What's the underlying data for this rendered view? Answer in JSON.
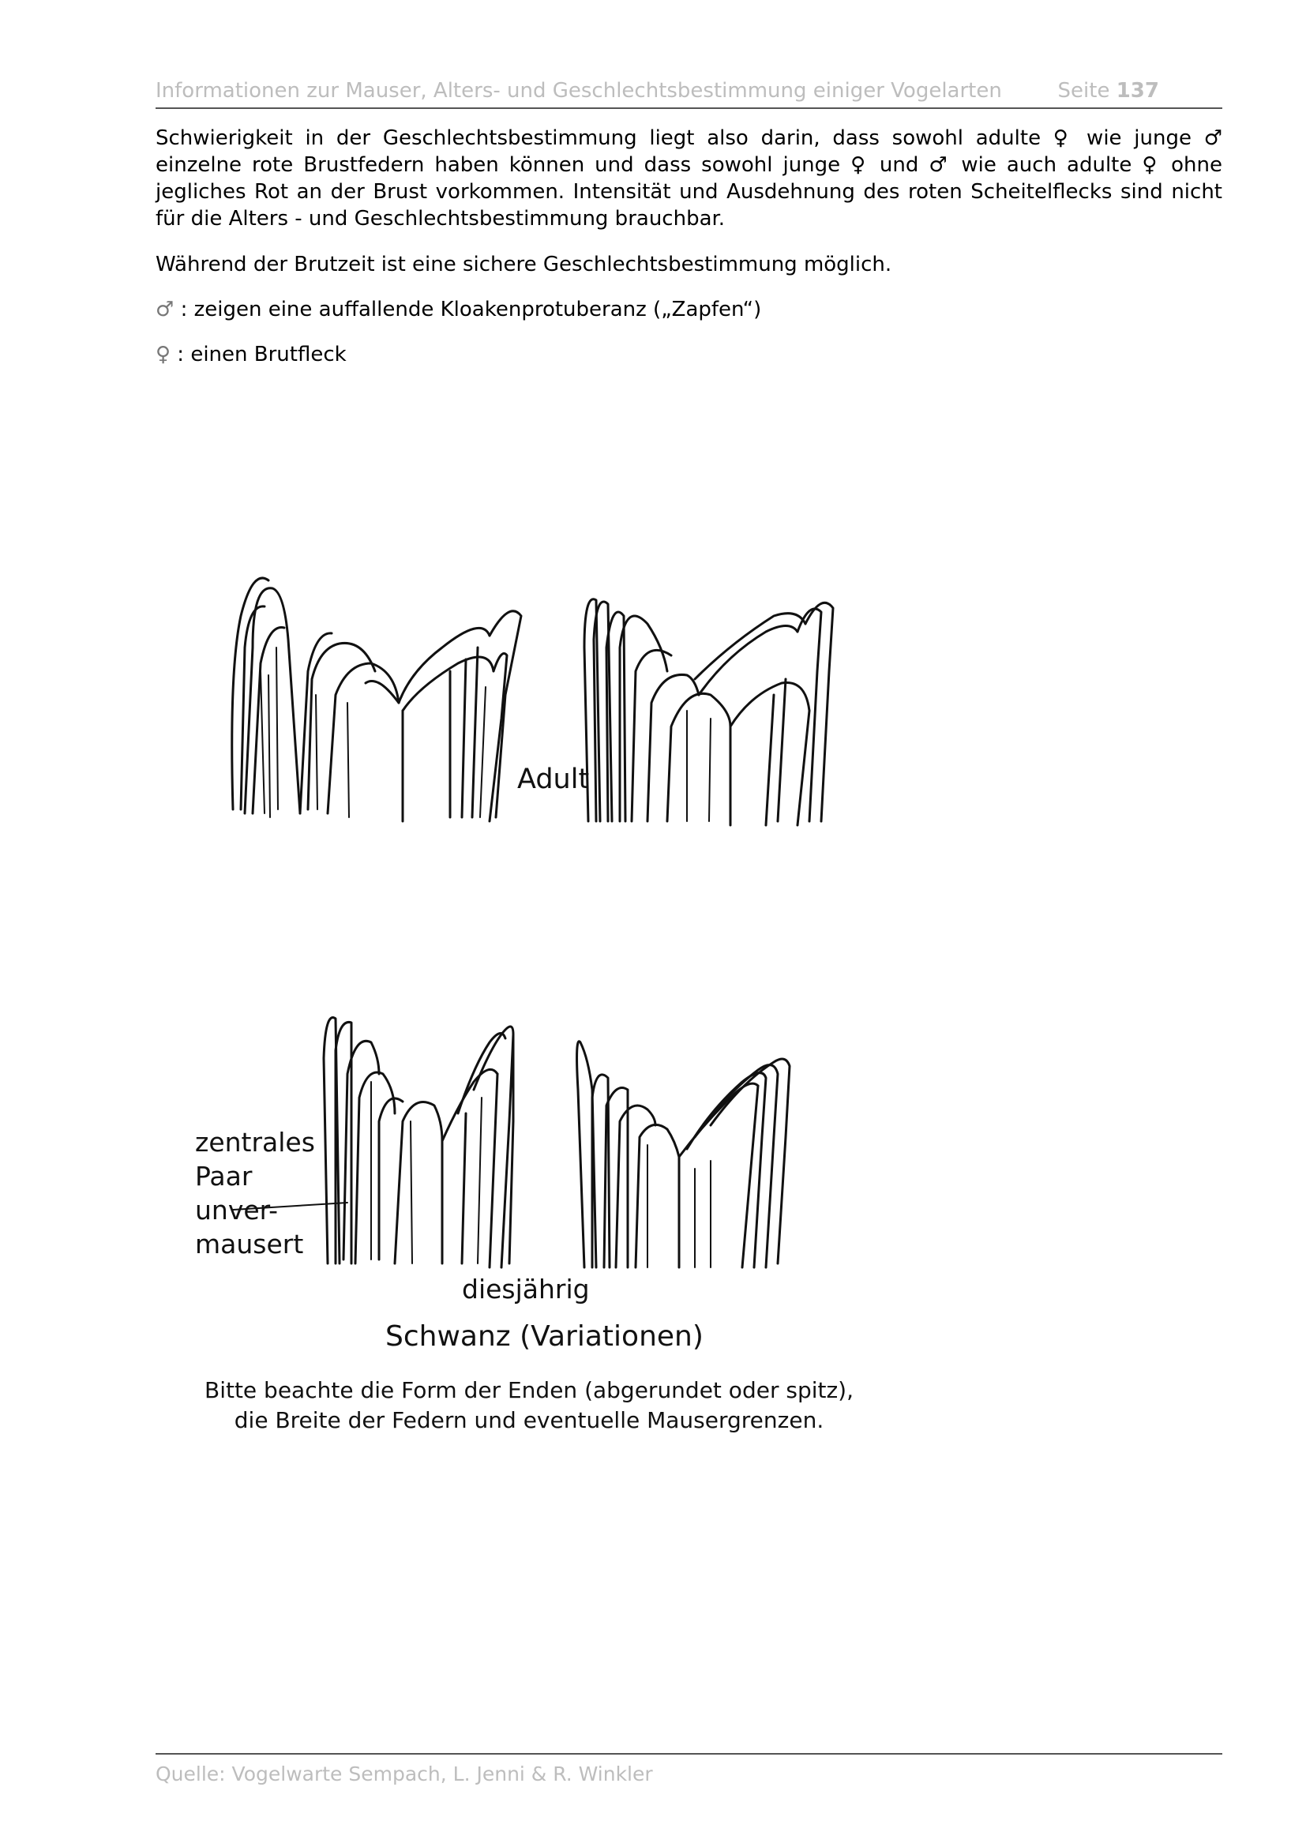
{
  "header": {
    "title": "Informationen zur Mauser, Alters- und Geschlechtsbestimmung einiger Vogelarten",
    "page_label": "Seite",
    "page_number": "137"
  },
  "body": {
    "p1": "Schwierigkeit in der Geschlechtsbestimmung liegt also darin, dass sowohl adulte ♀ wie junge ♂ einzelne rote Brustfedern haben können und dass sowohl junge ♀ und ♂ wie auch adulte ♀ ohne jegliches Rot an der Brust vorkommen. Intensität und Ausdehnung des roten Scheitelflecks sind nicht für die Alters - und Geschlechtsbestimmung brauchbar.",
    "p2": "Während der Brutzeit ist eine sichere Geschlechtsbestimmung möglich.",
    "male_symbol": "♂",
    "male_text": " : zeigen eine auffallende Kloakenprotuberanz („Zapfen“)",
    "female_symbol": "♀",
    "female_text": " : einen Brutfleck"
  },
  "figure": {
    "label_adult": "Adult",
    "label_central_1": "zentrales",
    "label_central_2": "Paar",
    "label_central_3": "unver-",
    "label_central_4": "mausert",
    "label_young": "diesjährig",
    "label_title": "Schwanz (Variationen)",
    "caption_1": "Bitte beachte die Form der Enden (abgerundet oder spitz),",
    "caption_2": "die Breite der Federn und eventuelle Mausergrenzen."
  },
  "footer": {
    "source": "Quelle: Vogelwarte Sempach, L. Jenni & R. Winkler"
  }
}
